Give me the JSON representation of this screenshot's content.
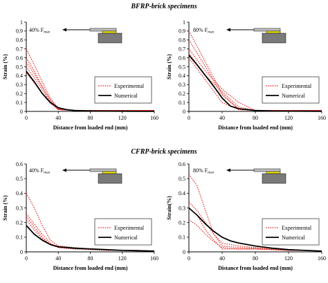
{
  "sections": {
    "top_title": "BFRP-brick specimens",
    "bottom_title": "CFRP-brick specimens"
  },
  "colors": {
    "experimental": "#e0201b",
    "numerical": "#000000",
    "plate": "#c0c0c0",
    "adhesive": "#f2e800",
    "brick": "#7a7a7a"
  },
  "chart_data": [
    {
      "type": "line",
      "id": "bfrp-40",
      "annotation": {
        "main": "40% F",
        "sub": "max"
      },
      "xlabel": "Distance from loaded end (mm)",
      "ylabel": "Strain (%)",
      "xlim": [
        0,
        160
      ],
      "ylim": [
        0,
        1
      ],
      "xticks": [
        0,
        40,
        80,
        120,
        160
      ],
      "yticks": [
        0,
        0.1,
        0.2,
        0.3,
        0.4,
        0.5,
        0.6,
        0.7,
        0.8,
        0.9,
        1
      ],
      "ytick_labels": [
        "0",
        "0.1",
        "0.2",
        "0.3",
        "0.4",
        "0.5",
        "0.6",
        "0.7",
        "0.8",
        "0.9",
        "1"
      ],
      "legend": {
        "position": "center-right",
        "experimental": "Experimental",
        "numerical": "Numerical"
      },
      "experimental": [
        {
          "x": [
            0,
            10,
            20,
            30,
            40,
            60,
            80,
            120,
            160
          ],
          "y": [
            0.7,
            0.52,
            0.33,
            0.15,
            0.03,
            0.01,
            0.01,
            0.01,
            0.01
          ]
        },
        {
          "x": [
            0,
            10,
            20,
            30,
            40,
            60,
            80,
            120,
            160
          ],
          "y": [
            0.6,
            0.45,
            0.28,
            0.13,
            0.03,
            0.01,
            0.01,
            0.01,
            0.01
          ]
        },
        {
          "x": [
            0,
            10,
            20,
            30,
            40,
            60,
            80,
            120,
            160
          ],
          "y": [
            0.55,
            0.42,
            0.27,
            0.12,
            0.02,
            0.01,
            0.01,
            0.01,
            0.01
          ]
        },
        {
          "x": [
            0,
            10,
            20,
            30,
            40,
            60,
            80,
            120,
            160
          ],
          "y": [
            0.5,
            0.38,
            0.24,
            0.1,
            0.02,
            0.01,
            0.01,
            0.01,
            0.01
          ]
        },
        {
          "x": [
            0,
            10,
            20,
            30,
            40,
            60,
            80,
            120,
            160
          ],
          "y": [
            0.43,
            0.32,
            0.2,
            0.09,
            0.02,
            0.01,
            0.01,
            0.01,
            0.01
          ]
        }
      ],
      "numerical": {
        "x": [
          0,
          10,
          20,
          30,
          40,
          50,
          60,
          80,
          100,
          120,
          140,
          160
        ],
        "y": [
          0.45,
          0.33,
          0.2,
          0.1,
          0.04,
          0.02,
          0.01,
          0.005,
          0.003,
          0.002,
          0.001,
          0.001
        ]
      }
    },
    {
      "type": "line",
      "id": "bfrp-80",
      "annotation": {
        "main": "80% F",
        "sub": "max"
      },
      "xlabel": "Distance from loaded end (mm)",
      "ylabel": "Strain (%)",
      "xlim": [
        0,
        160
      ],
      "ylim": [
        0,
        1
      ],
      "xticks": [
        0,
        40,
        80,
        120,
        160
      ],
      "yticks": [
        0,
        0.1,
        0.2,
        0.3,
        0.4,
        0.5,
        0.6,
        0.7,
        0.8,
        0.9,
        1
      ],
      "ytick_labels": [
        "0",
        "0.1",
        "0.2",
        "0.3",
        "0.4",
        "0.5",
        "0.6",
        "0.7",
        "0.8",
        "0.9",
        "1"
      ],
      "legend": {
        "position": "center-right",
        "experimental": "Experimental",
        "numerical": "Numerical"
      },
      "experimental": [
        {
          "x": [
            0,
            20,
            40,
            60,
            80,
            120,
            160
          ],
          "y": [
            0.9,
            0.55,
            0.2,
            0.02,
            0.01,
            0.01,
            0.01
          ]
        },
        {
          "x": [
            0,
            20,
            40,
            60,
            80,
            120,
            160
          ],
          "y": [
            0.8,
            0.5,
            0.18,
            0.03,
            0.01,
            0.01,
            0.01
          ]
        },
        {
          "x": [
            0,
            20,
            40,
            60,
            80,
            120,
            160
          ],
          "y": [
            0.7,
            0.45,
            0.25,
            0.1,
            0.01,
            0.01,
            0.01
          ]
        },
        {
          "x": [
            0,
            20,
            40,
            60,
            80,
            120,
            160
          ],
          "y": [
            0.65,
            0.4,
            0.22,
            0.05,
            0.01,
            0.01,
            0.01
          ]
        },
        {
          "x": [
            0,
            20,
            40,
            60,
            80,
            120,
            160
          ],
          "y": [
            0.6,
            0.35,
            0.1,
            0.02,
            0.01,
            0.01,
            0.01
          ]
        }
      ],
      "numerical": {
        "x": [
          0,
          10,
          20,
          30,
          40,
          50,
          60,
          70,
          80,
          100,
          120,
          140,
          160
        ],
        "y": [
          0.63,
          0.52,
          0.4,
          0.28,
          0.15,
          0.06,
          0.03,
          0.02,
          0.01,
          0.005,
          0.003,
          0.002,
          0.001
        ]
      }
    },
    {
      "type": "line",
      "id": "cfrp-40",
      "annotation": {
        "main": "40% F",
        "sub": "max"
      },
      "xlabel": "Distance from loaded end (mm)",
      "ylabel": "Strain (%)",
      "xlim": [
        0,
        160
      ],
      "ylim": [
        0,
        0.6
      ],
      "xticks": [
        0,
        40,
        80,
        120,
        160
      ],
      "yticks": [
        0,
        0.1,
        0.2,
        0.3,
        0.4,
        0.5,
        0.6
      ],
      "ytick_labels": [
        "0",
        "0.1",
        "0.2",
        "0.3",
        "0.4",
        "0.5",
        "0.6"
      ],
      "legend": {
        "position": "lower-right",
        "experimental": "Experimental",
        "numerical": "Numerical"
      },
      "experimental": [
        {
          "x": [
            0,
            10,
            20,
            30,
            40,
            60,
            80,
            100,
            120,
            140,
            160
          ],
          "y": [
            0.4,
            0.3,
            0.18,
            0.08,
            0.04,
            0.03,
            0.02,
            0.015,
            0.01,
            0.01,
            0.005
          ]
        },
        {
          "x": [
            0,
            10,
            20,
            30,
            40,
            60,
            80,
            100,
            120,
            140,
            160
          ],
          "y": [
            0.26,
            0.19,
            0.12,
            0.06,
            0.03,
            0.025,
            0.02,
            0.015,
            0.01,
            0.01,
            0.005
          ]
        },
        {
          "x": [
            0,
            10,
            20,
            30,
            40,
            60,
            80,
            100,
            120,
            140,
            160
          ],
          "y": [
            0.24,
            0.17,
            0.1,
            0.05,
            0.03,
            0.02,
            0.02,
            0.015,
            0.01,
            0.01,
            0.005
          ]
        },
        {
          "x": [
            0,
            10,
            20,
            30,
            40,
            60,
            80,
            100,
            120,
            140,
            160
          ],
          "y": [
            0.22,
            0.15,
            0.09,
            0.05,
            0.03,
            0.02,
            0.015,
            0.01,
            0.01,
            0.005,
            0.005
          ]
        }
      ],
      "numerical": {
        "x": [
          0,
          10,
          20,
          30,
          40,
          50,
          60,
          80,
          100,
          120,
          140,
          160
        ],
        "y": [
          0.18,
          0.12,
          0.08,
          0.05,
          0.035,
          0.03,
          0.025,
          0.02,
          0.015,
          0.01,
          0.008,
          0.005
        ]
      }
    },
    {
      "type": "line",
      "id": "cfrp-80",
      "annotation": {
        "main": "80% F",
        "sub": "max"
      },
      "xlabel": "Distance from loaded end (mm)",
      "ylabel": "Strain(%)",
      "xlim": [
        0,
        160
      ],
      "ylim": [
        0,
        0.6
      ],
      "xticks": [
        0,
        40,
        80,
        120,
        160
      ],
      "yticks": [
        0,
        0.1,
        0.2,
        0.3,
        0.4,
        0.5,
        0.6
      ],
      "ytick_labels": [
        "0",
        "0.1",
        "0.2",
        "0.3",
        "0.4",
        "0.5",
        "0.6"
      ],
      "legend": {
        "position": "lower-right",
        "experimental": "Experimental",
        "numerical": "Numerical"
      },
      "experimental": [
        {
          "x": [
            0,
            10,
            20,
            30,
            40,
            60,
            80,
            100,
            120,
            140,
            160
          ],
          "y": [
            0.53,
            0.45,
            0.28,
            0.12,
            0.04,
            0.03,
            0.025,
            0.02,
            0.015,
            0.01,
            0.005
          ]
        },
        {
          "x": [
            0,
            10,
            20,
            30,
            40,
            60,
            80,
            100,
            120,
            140,
            160
          ],
          "y": [
            0.34,
            0.28,
            0.2,
            0.12,
            0.06,
            0.04,
            0.03,
            0.02,
            0.015,
            0.01,
            0.005
          ]
        },
        {
          "x": [
            0,
            10,
            20,
            30,
            40,
            60,
            80,
            100,
            120,
            140,
            160
          ],
          "y": [
            0.3,
            0.25,
            0.15,
            0.08,
            0.02,
            0.02,
            0.02,
            0.015,
            0.01,
            0.01,
            0.005
          ]
        },
        {
          "x": [
            0,
            10,
            20,
            30,
            40,
            60,
            80,
            100,
            120,
            140,
            160
          ],
          "y": [
            0.22,
            0.18,
            0.12,
            0.07,
            0.03,
            0.02,
            0.02,
            0.015,
            0.01,
            0.01,
            0.005
          ]
        }
      ],
      "numerical": {
        "x": [
          0,
          10,
          20,
          30,
          40,
          50,
          60,
          80,
          100,
          120,
          140,
          160
        ],
        "y": [
          0.3,
          0.25,
          0.19,
          0.14,
          0.1,
          0.075,
          0.06,
          0.04,
          0.025,
          0.015,
          0.01,
          0.005
        ]
      }
    }
  ]
}
